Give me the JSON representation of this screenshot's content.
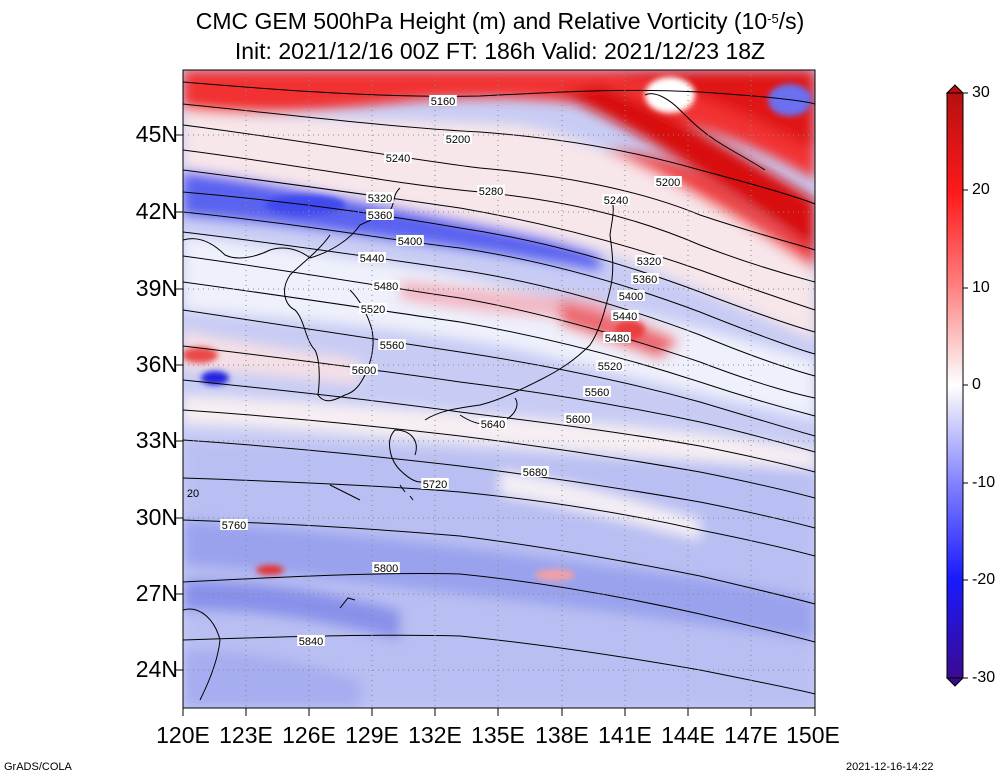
{
  "title": {
    "line1_prefix": "CMC GEM 500hPa Height (m) and Relative Vorticity (10",
    "line1_exp": "-5",
    "line1_suffix": "/s)",
    "line2": "Init: 2021/12/16 00Z  FT: 186h  Valid: 2021/12/23 18Z"
  },
  "map": {
    "lon_labels": [
      "120E",
      "123E",
      "126E",
      "129E",
      "132E",
      "135E",
      "138E",
      "141E",
      "144E",
      "147E",
      "150E"
    ],
    "lat_labels": [
      "45N",
      "42N",
      "39N",
      "36N",
      "33N",
      "30N",
      "27N",
      "24N"
    ],
    "height_contours": [
      {
        "label": "5160",
        "text_at": "5160"
      },
      {
        "label": "5200",
        "text_at": "5200"
      },
      {
        "label": "5240",
        "text_at": "5240"
      },
      {
        "label": "5280",
        "text_at": "5280"
      },
      {
        "label": "5320",
        "text_at": "5320"
      },
      {
        "label": "5360",
        "text_at": "5360"
      },
      {
        "label": "5400",
        "text_at": "5400"
      },
      {
        "label": "5440",
        "text_at": "5440"
      },
      {
        "label": "5480",
        "text_at": "5480"
      },
      {
        "label": "5520",
        "text_at": "5520"
      },
      {
        "label": "5560",
        "text_at": "5560"
      },
      {
        "label": "5600",
        "text_at": "5600"
      },
      {
        "label": "5640",
        "text_at": "5640"
      },
      {
        "label": "5680",
        "text_at": "5680"
      },
      {
        "label": "5720",
        "text_at": "5720"
      },
      {
        "label": "5760",
        "text_at": "5760"
      },
      {
        "label": "5800",
        "text_at": "5800"
      },
      {
        "label": "5840",
        "text_at": "5840"
      }
    ],
    "edge_label": "20",
    "colors": {
      "positive_max": "#b50000",
      "positive_mid": "#ff2020",
      "neutral": "#f4f4f8",
      "negative_mid": "#3030ff",
      "negative_max": "#2a0a8a"
    }
  },
  "colorbar": {
    "labels": [
      "30",
      "20",
      "10",
      "0",
      "-10",
      "-20",
      "-30"
    ]
  },
  "footer": {
    "left": "GrADS/COLA",
    "right": "2021-12-16-14:22"
  }
}
